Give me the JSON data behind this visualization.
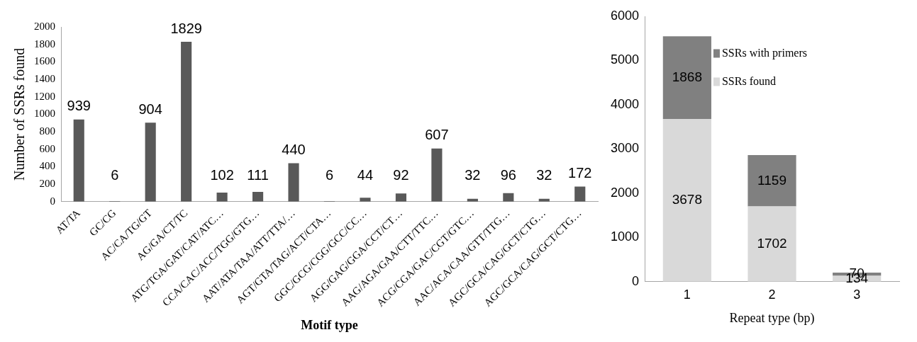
{
  "chart_data": [
    {
      "type": "bar",
      "xlabel": "Motif type",
      "ylabel": "Number of SSRs found",
      "categories": [
        "AT/TA",
        "GC/CG",
        "AC/CA/TG/GT",
        "AG/GA/CT/TC",
        "ATG/TGA/GAT/CAT/ATC…",
        "CCA/CAC/ACC/TGG/GTG…",
        "AAT/ATA/TAA/ATT/TTA/…",
        "AGT/GTA/TAG/ACT/CTA…",
        "GGC/GCG/CGG/GCC/CC…",
        "AGG/GAG/GGA/CCT/CT…",
        "AAG/AGA/GAA/CTT/TTC…",
        "ACG/CGA/GAC/CGT/GTC…",
        "AAC/ACA/CAA/GTT/TTG…",
        "AGC/GCA/CAG/GCT/CTG…",
        "AGC/GCA/CAG/GCT/CTG…"
      ],
      "values": [
        939,
        6,
        904,
        1829,
        102,
        111,
        440,
        6,
        44,
        92,
        607,
        32,
        96,
        32,
        172
      ],
      "color": "#595959",
      "ylim": [
        0,
        2000
      ],
      "yticks": [
        0,
        200,
        400,
        600,
        800,
        1000,
        1200,
        1400,
        1600,
        1800,
        2000
      ],
      "grid": false,
      "data_labels": true
    },
    {
      "type": "bar",
      "xlabel": "Repeat type (bp)",
      "categories": [
        "1",
        "2",
        "3"
      ],
      "stacked": true,
      "series": [
        {
          "name": "SSRs found",
          "color": "#d9d9d9",
          "values": [
            3678,
            1702,
            134
          ]
        },
        {
          "name": "SSRs with primers",
          "color": "#808080",
          "values": [
            1868,
            1159,
            70
          ]
        }
      ],
      "ylim": [
        0,
        6000
      ],
      "yticks": [
        0,
        1000,
        2000,
        3000,
        4000,
        5000,
        6000
      ],
      "grid": false,
      "data_labels": true,
      "legend": "top"
    }
  ]
}
